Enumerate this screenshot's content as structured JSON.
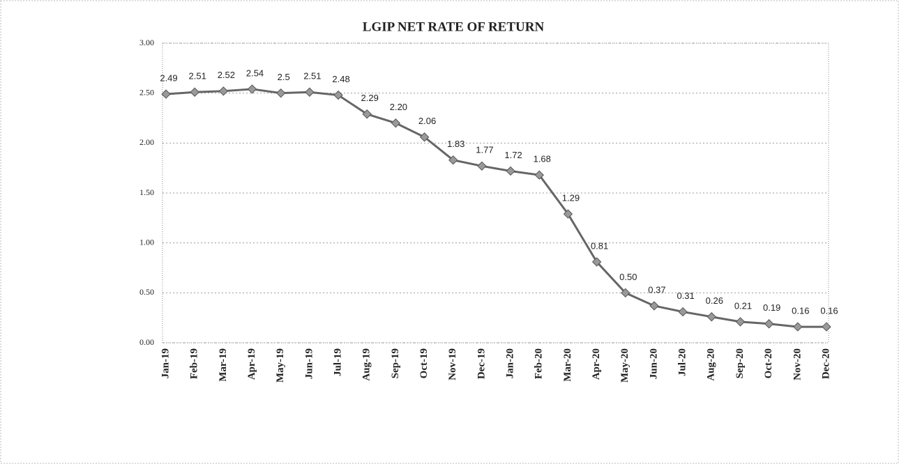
{
  "chart_data": {
    "type": "line",
    "title": "LGIP NET RATE OF RETURN",
    "categories": [
      "Jan-19",
      "Feb-19",
      "Mar-19",
      "Apr-19",
      "May-19",
      "Jun-19",
      "Jul-19",
      "Aug-19",
      "Sep-19",
      "Oct-19",
      "Nov-19",
      "Dec-19",
      "Jan-20",
      "Feb-20",
      "Mar-20",
      "Apr-20",
      "May-20",
      "Jun-20",
      "Jul-20",
      "Aug-20",
      "Sep-20",
      "Oct-20",
      "Nov-20",
      "Dec-20"
    ],
    "values": [
      2.49,
      2.51,
      2.52,
      2.54,
      2.5,
      2.51,
      2.48,
      2.29,
      2.2,
      2.06,
      1.83,
      1.77,
      1.72,
      1.68,
      1.29,
      0.81,
      0.5,
      0.37,
      0.31,
      0.26,
      0.21,
      0.19,
      0.16,
      0.16
    ],
    "value_labels": [
      "2.49",
      "2.51",
      "2.52",
      "2.54",
      "2.5",
      "2.51",
      "2.48",
      "2.29",
      "2.20",
      "2.06",
      "1.83",
      "1.77",
      "1.72",
      "1.68",
      "1.29",
      "0.81",
      "0.50",
      "0.37",
      "0.31",
      "0.26",
      "0.21",
      "0.19",
      "0.16",
      "0.16"
    ],
    "color": "#666666",
    "ylim": [
      0,
      3
    ],
    "yticks": [
      {
        "value": 0,
        "label": "0.00"
      },
      {
        "value": 0.5,
        "label": "0.50"
      },
      {
        "value": 1,
        "label": "1.00"
      },
      {
        "value": 1.5,
        "label": "1.50"
      },
      {
        "value": 2,
        "label": "2.00"
      },
      {
        "value": 2.5,
        "label": "2.50"
      },
      {
        "value": 3,
        "label": "3.00"
      }
    ],
    "grid": true
  }
}
